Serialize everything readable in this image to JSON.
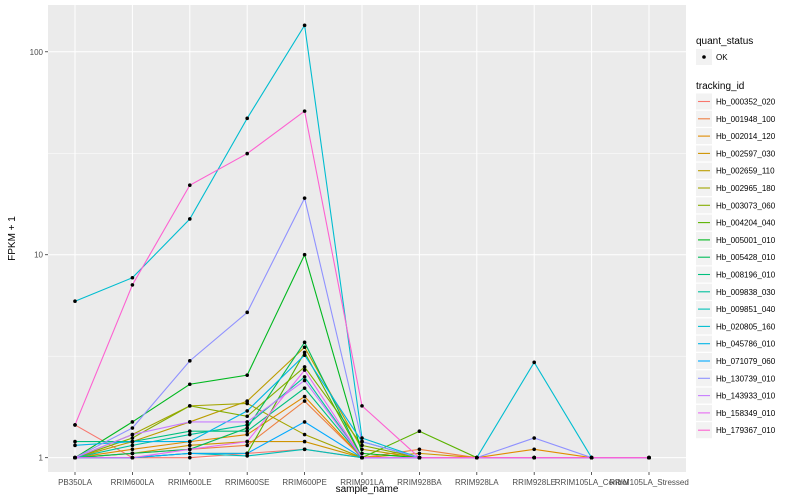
{
  "chart_data": {
    "type": "line",
    "xlabel": "sample_name",
    "ylabel": "FPKM + 1",
    "y_scale": "log10",
    "ylim": [
      0.85,
      170
    ],
    "y_ticks": [
      1,
      10,
      100
    ],
    "y_tick_labels": [
      "1",
      "10",
      "100"
    ],
    "grid": true,
    "legend_position": "right",
    "categories": [
      "PB350LA",
      "RRIM600LA",
      "RRIM600LE",
      "RRIM600SE",
      "RRIM600PE",
      "RRIM901LA",
      "RRIM928BA",
      "RRIM928LA",
      "RRIM928LE",
      "RRIM105LA_Control",
      "RRIM105LA_Stressed"
    ],
    "point_legend": {
      "title": "quant_status",
      "items": [
        "OK"
      ]
    },
    "color_legend_title": "tracking_id",
    "series": [
      {
        "name": "Hb_000352_020",
        "color": "#F8766D",
        "values": [
          1.45,
          1.0,
          1.0,
          1.05,
          1.1,
          1.0,
          1.0,
          1.0,
          1.0,
          1.0,
          1.0
        ]
      },
      {
        "name": "Hb_001948_100",
        "color": "#EE8044",
        "values": [
          1.0,
          1.05,
          1.1,
          1.15,
          1.9,
          1.0,
          1.1,
          1.0,
          1.0,
          1.0,
          1.0
        ]
      },
      {
        "name": "Hb_002014_120",
        "color": "#E08B00",
        "values": [
          1.0,
          1.1,
          1.2,
          1.3,
          2.0,
          1.0,
          1.0,
          1.0,
          1.1,
          1.0,
          1.0
        ]
      },
      {
        "name": "Hb_002597_030",
        "color": "#CF9400",
        "values": [
          1.0,
          1.05,
          1.15,
          1.2,
          1.2,
          1.0,
          1.05,
          1.0,
          1.0,
          1.0,
          1.0
        ]
      },
      {
        "name": "Hb_002659_110",
        "color": "#BB9D00",
        "values": [
          1.0,
          1.2,
          1.5,
          1.9,
          3.5,
          1.1,
          1.0,
          1.0,
          1.0,
          1.0,
          1.0
        ]
      },
      {
        "name": "Hb_002965_180",
        "color": "#A3A500",
        "values": [
          1.0,
          1.3,
          1.8,
          1.85,
          1.3,
          1.0,
          1.0,
          1.0,
          1.0,
          1.0,
          1.0
        ]
      },
      {
        "name": "Hb_003073_060",
        "color": "#85AD00",
        "values": [
          1.0,
          1.25,
          1.8,
          1.6,
          2.8,
          1.15,
          1.0,
          1.0,
          1.0,
          1.0,
          1.0
        ]
      },
      {
        "name": "Hb_004204_040",
        "color": "#5BB300",
        "values": [
          1.0,
          1.0,
          1.05,
          1.05,
          3.3,
          1.0,
          1.35,
          1.0,
          1.0,
          1.0,
          1.0
        ]
      },
      {
        "name": "Hb_005001_010",
        "color": "#00B81F",
        "values": [
          1.0,
          1.5,
          2.3,
          2.55,
          10.0,
          1.05,
          1.0,
          1.0,
          1.0,
          1.0,
          1.0
        ]
      },
      {
        "name": "Hb_005428_010",
        "color": "#00BC59",
        "values": [
          1.0,
          1.05,
          1.1,
          1.4,
          3.7,
          1.0,
          1.0,
          1.0,
          1.0,
          1.0,
          1.0
        ]
      },
      {
        "name": "Hb_008196_010",
        "color": "#00BF7D",
        "values": [
          1.2,
          1.2,
          1.35,
          1.35,
          2.2,
          1.0,
          1.0,
          1.0,
          1.0,
          1.0,
          1.0
        ]
      },
      {
        "name": "Hb_009838_030",
        "color": "#00C19C",
        "values": [
          1.0,
          1.15,
          1.3,
          1.45,
          2.5,
          1.0,
          1.0,
          1.0,
          1.0,
          1.0,
          1.0
        ]
      },
      {
        "name": "Hb_009851_040",
        "color": "#00C0B8",
        "values": [
          1.0,
          1.0,
          1.05,
          1.02,
          1.1,
          1.0,
          1.0,
          1.0,
          1.0,
          1.0,
          1.0
        ]
      },
      {
        "name": "Hb_020805_160",
        "color": "#00BDD0",
        "values": [
          5.9,
          7.7,
          15.0,
          47.0,
          135.0,
          1.25,
          1.0,
          1.0,
          2.95,
          1.0,
          1.0
        ]
      },
      {
        "name": "Hb_045786_010",
        "color": "#00B5E6",
        "values": [
          1.15,
          1.2,
          1.2,
          1.7,
          3.2,
          1.2,
          1.0,
          1.0,
          1.0,
          1.0,
          1.0
        ]
      },
      {
        "name": "Hb_071079_060",
        "color": "#00A9FF",
        "values": [
          1.0,
          1.0,
          1.05,
          1.05,
          1.5,
          1.0,
          1.0,
          1.0,
          1.0,
          1.0,
          1.0
        ]
      },
      {
        "name": "Hb_130739_010",
        "color": "#8F91FF",
        "values": [
          1.0,
          1.4,
          3.0,
          5.2,
          19.0,
          1.2,
          1.0,
          1.0,
          1.25,
          1.0,
          1.0
        ]
      },
      {
        "name": "Hb_143933_010",
        "color": "#C77CFF",
        "values": [
          1.0,
          1.3,
          1.5,
          1.5,
          2.4,
          1.0,
          1.0,
          1.0,
          1.0,
          1.0,
          1.0
        ]
      },
      {
        "name": "Hb_158349_010",
        "color": "#E76BF3",
        "values": [
          1.0,
          1.0,
          1.1,
          1.2,
          2.7,
          1.0,
          1.0,
          1.0,
          1.0,
          1.0,
          1.0
        ]
      },
      {
        "name": "Hb_179367_010",
        "color": "#FD61D1",
        "values": [
          1.45,
          7.1,
          22.0,
          31.5,
          51.0,
          1.8,
          1.0,
          1.0,
          1.0,
          1.0,
          1.0
        ]
      }
    ]
  }
}
